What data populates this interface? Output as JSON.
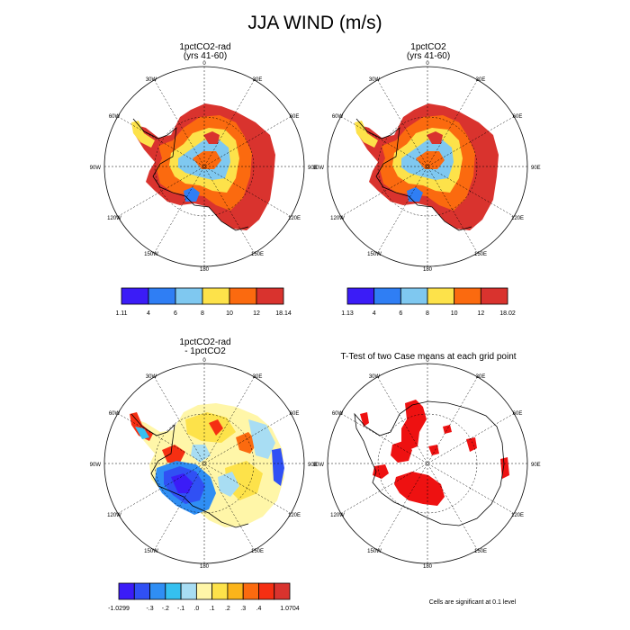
{
  "title": "JJA WIND (m/s)",
  "panels": [
    {
      "id": "p1",
      "title_line1": "1pctCO2-rad",
      "title_line2": "(yrs 41-60)"
    },
    {
      "id": "p2",
      "title_line1": "1pctCO2",
      "title_line2": "(yrs 41-60)"
    },
    {
      "id": "p3",
      "title_line1": "1pctCO2-rad",
      "title_line2": "- 1pctCO2"
    },
    {
      "id": "p4",
      "title_line1": "T-Test of two Case means at each grid point",
      "title_line2": ""
    }
  ],
  "longitude_labels": [
    "0",
    "30E",
    "60E",
    "90E",
    "120E",
    "150E",
    "180",
    "150W",
    "120W",
    "90W",
    "60W",
    "30W"
  ],
  "colorbars": [
    {
      "id": "cb1",
      "colors": [
        "#3b1cf7",
        "#2f7ef4",
        "#7fc8f0",
        "#fde24a",
        "#fb6a0f",
        "#d9332e"
      ],
      "labels": [
        "1.11",
        "4",
        "6",
        "8",
        "10",
        "12",
        "18.14"
      ]
    },
    {
      "id": "cb2",
      "colors": [
        "#3b1cf7",
        "#2f7ef4",
        "#7fc8f0",
        "#fde24a",
        "#fb6a0f",
        "#d9332e"
      ],
      "labels": [
        "1.13",
        "4",
        "6",
        "8",
        "10",
        "12",
        "18.02"
      ]
    },
    {
      "id": "cb3",
      "colors": [
        "#3b1cf7",
        "#3050f4",
        "#2f8ef4",
        "#35c0f0",
        "#a8ddf3",
        "#fff6a8",
        "#fde24a",
        "#fbb41a",
        "#fb6a0f",
        "#f52f12",
        "#d9332e"
      ],
      "labels": [
        "-1.0299",
        "-.3",
        "-.2",
        "-.1",
        ".0",
        ".1",
        ".2",
        ".3",
        ".4",
        "1.0704"
      ]
    }
  ],
  "significance_color": "#ee1111",
  "footnote": "Cells are significant at 0.1 level"
}
